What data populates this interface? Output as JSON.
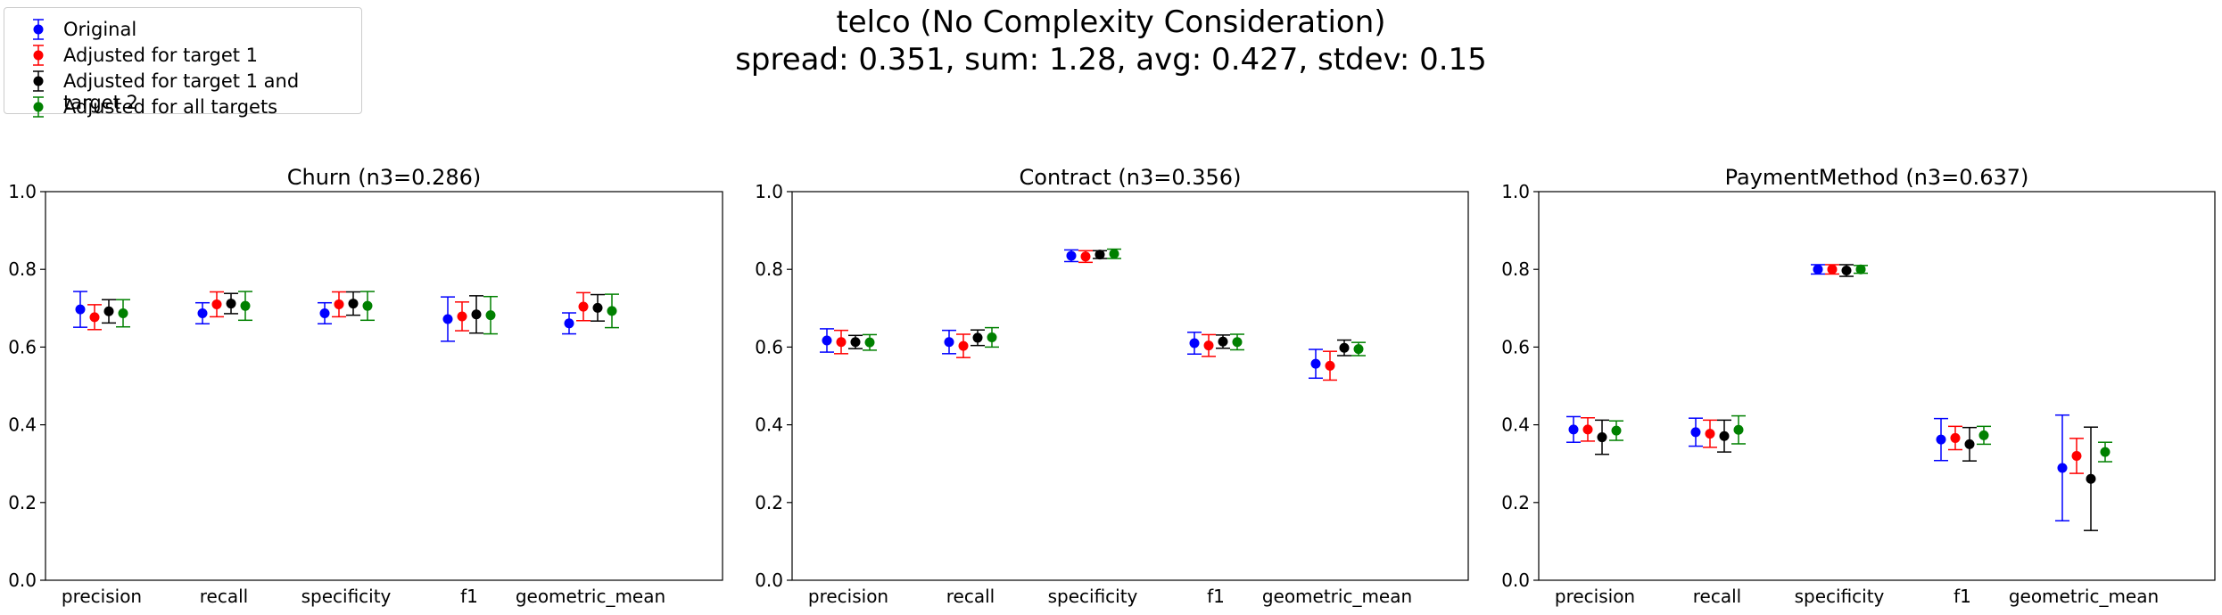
{
  "figure": {
    "title_line1": "telco (No Complexity Consideration)",
    "title_line2": "spread: 0.351, sum: 1.28, avg: 0.427, stdev: 0.15"
  },
  "legend": {
    "items": [
      {
        "label": "Original",
        "color": "#0000ff"
      },
      {
        "label": "Adjusted for target 1",
        "color": "#ff0000"
      },
      {
        "label": "Adjusted for target 1 and target 2",
        "color": "#000000"
      },
      {
        "label": "Adjusted for all targets",
        "color": "#008000"
      }
    ]
  },
  "chart_data": [
    {
      "type": "scatter",
      "title": "Churn (n3=0.286)",
      "categories": [
        "precision",
        "recall",
        "specificity",
        "f1",
        "geometric_mean"
      ],
      "ylim": [
        0,
        1
      ],
      "yticks": [
        "0.0",
        "0.2",
        "0.4",
        "0.6",
        "0.8",
        "1.0"
      ],
      "grid": false,
      "series": [
        {
          "name": "Original",
          "values": [
            0.697,
            0.687,
            0.687,
            0.672,
            0.661
          ],
          "err": [
            0.046,
            0.027,
            0.027,
            0.057,
            0.027
          ]
        },
        {
          "name": "Adjusted for target 1",
          "values": [
            0.677,
            0.71,
            0.71,
            0.679,
            0.704
          ],
          "err": [
            0.032,
            0.032,
            0.032,
            0.037,
            0.036
          ]
        },
        {
          "name": "Adjusted for target 1 and target 2",
          "values": [
            0.692,
            0.712,
            0.712,
            0.684,
            0.701
          ],
          "err": [
            0.03,
            0.026,
            0.03,
            0.048,
            0.034
          ]
        },
        {
          "name": "Adjusted for all targets",
          "values": [
            0.687,
            0.706,
            0.706,
            0.682,
            0.693
          ],
          "err": [
            0.035,
            0.037,
            0.037,
            0.048,
            0.043
          ]
        }
      ]
    },
    {
      "type": "scatter",
      "title": "Contract (n3=0.356)",
      "categories": [
        "precision",
        "recall",
        "specificity",
        "f1",
        "geometric_mean"
      ],
      "ylim": [
        0,
        1
      ],
      "yticks": [
        "0.0",
        "0.2",
        "0.4",
        "0.6",
        "0.8",
        "1.0"
      ],
      "grid": false,
      "series": [
        {
          "name": "Original",
          "values": [
            0.617,
            0.613,
            0.835,
            0.61,
            0.557
          ],
          "err": [
            0.03,
            0.03,
            0.015,
            0.028,
            0.037
          ]
        },
        {
          "name": "Adjusted for target 1",
          "values": [
            0.613,
            0.603,
            0.833,
            0.604,
            0.552
          ],
          "err": [
            0.03,
            0.03,
            0.015,
            0.028,
            0.037
          ]
        },
        {
          "name": "Adjusted for target 1 and target 2",
          "values": [
            0.613,
            0.624,
            0.838,
            0.614,
            0.598
          ],
          "err": [
            0.017,
            0.02,
            0.01,
            0.017,
            0.02
          ]
        },
        {
          "name": "Adjusted for all targets",
          "values": [
            0.612,
            0.625,
            0.84,
            0.613,
            0.595
          ],
          "err": [
            0.02,
            0.025,
            0.012,
            0.02,
            0.017
          ]
        }
      ]
    },
    {
      "type": "scatter",
      "title": "PaymentMethod (n3=0.637)",
      "categories": [
        "precision",
        "recall",
        "specificity",
        "f1",
        "geometric_mean"
      ],
      "ylim": [
        0,
        1
      ],
      "yticks": [
        "0.0",
        "0.2",
        "0.4",
        "0.6",
        "0.8",
        "1.0"
      ],
      "grid": false,
      "series": [
        {
          "name": "Original",
          "values": [
            0.388,
            0.381,
            0.8,
            0.362,
            0.289
          ],
          "err": [
            0.033,
            0.036,
            0.012,
            0.054,
            0.136
          ]
        },
        {
          "name": "Adjusted for target 1",
          "values": [
            0.388,
            0.377,
            0.8,
            0.366,
            0.32
          ],
          "err": [
            0.03,
            0.035,
            0.012,
            0.03,
            0.045
          ]
        },
        {
          "name": "Adjusted for target 1 and target 2",
          "values": [
            0.368,
            0.371,
            0.797,
            0.35,
            0.261
          ],
          "err": [
            0.044,
            0.041,
            0.015,
            0.043,
            0.133
          ]
        },
        {
          "name": "Adjusted for all targets",
          "values": [
            0.385,
            0.387,
            0.8,
            0.373,
            0.33
          ],
          "err": [
            0.025,
            0.036,
            0.01,
            0.023,
            0.025
          ]
        }
      ]
    }
  ]
}
